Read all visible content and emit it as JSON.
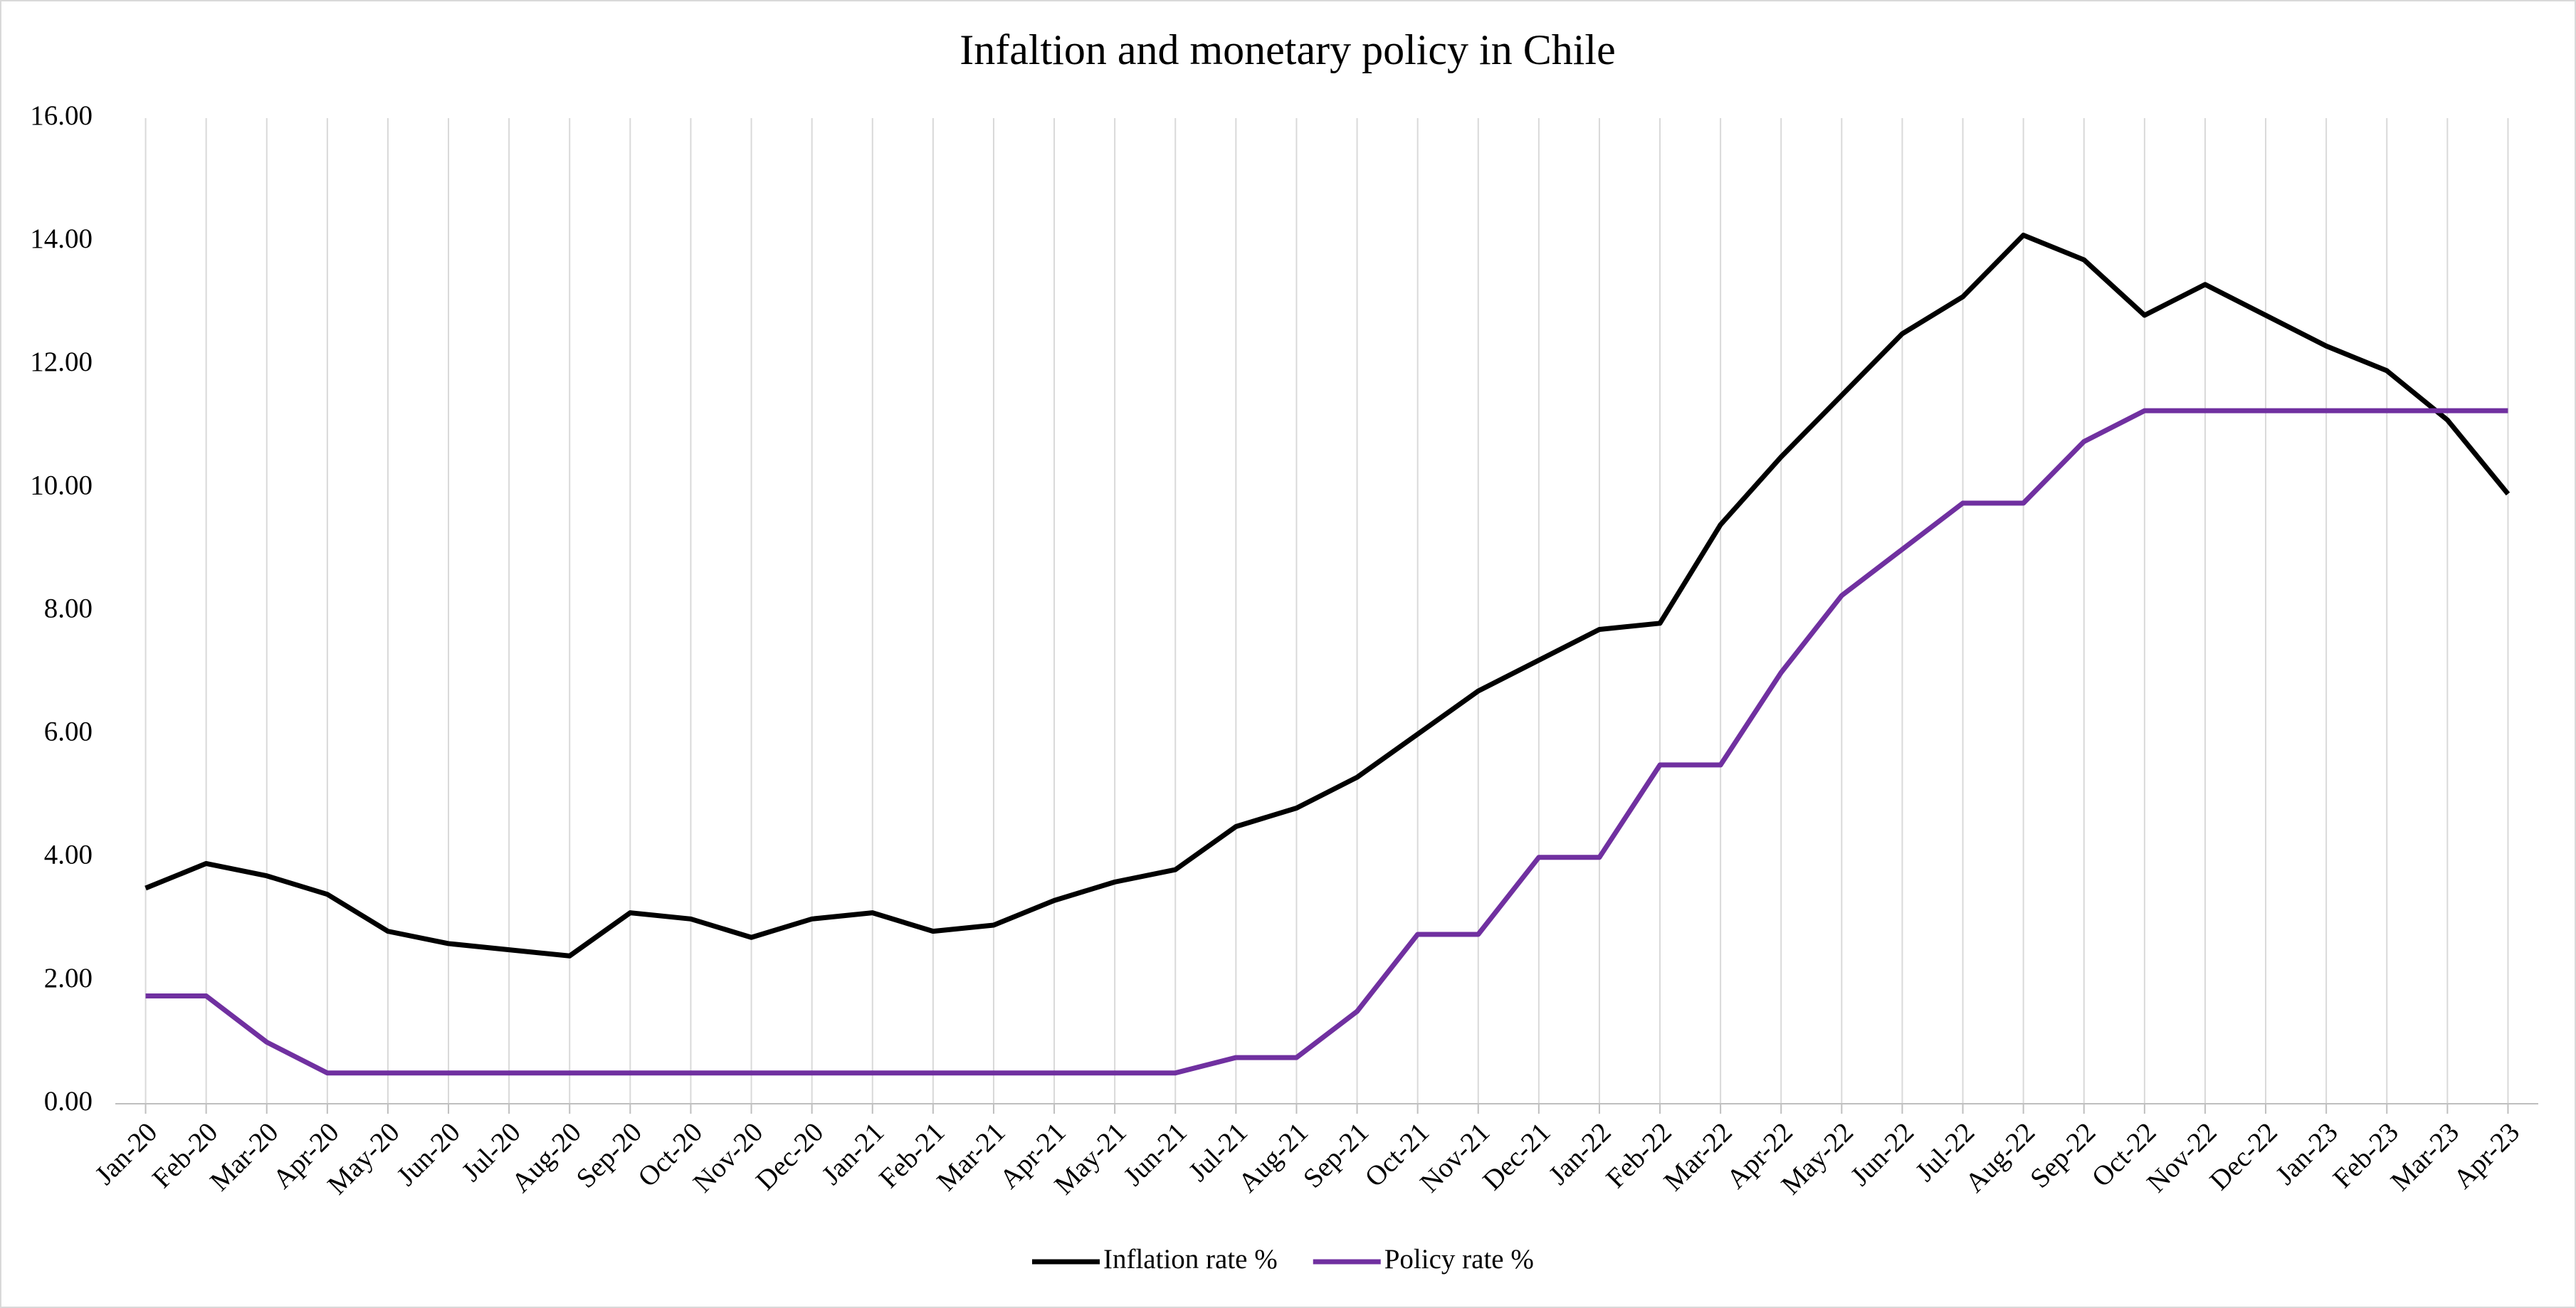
{
  "chart_data": {
    "type": "line",
    "title": "Infaltion and monetary policy in Chile",
    "categories": [
      "Jan-20",
      "Feb-20",
      "Mar-20",
      "Apr-20",
      "May-20",
      "Jun-20",
      "Jul-20",
      "Aug-20",
      "Sep-20",
      "Oct-20",
      "Nov-20",
      "Dec-20",
      "Jan-21",
      "Feb-21",
      "Mar-21",
      "Apr-21",
      "May-21",
      "Jun-21",
      "Jul-21",
      "Aug-21",
      "Sep-21",
      "Oct-21",
      "Nov-21",
      "Dec-21",
      "Jan-22",
      "Feb-22",
      "Mar-22",
      "Apr-22",
      "May-22",
      "Jun-22",
      "Jul-22",
      "Aug-22",
      "Sep-22",
      "Oct-22",
      "Nov-22",
      "Dec-22",
      "Jan-23",
      "Feb-23",
      "Mar-23",
      "Apr-23"
    ],
    "series": [
      {
        "name": "Inflation rate %",
        "color": "#000000",
        "values": [
          3.5,
          3.9,
          3.7,
          3.4,
          2.8,
          2.6,
          2.5,
          2.4,
          3.1,
          3.0,
          2.7,
          3.0,
          3.1,
          2.8,
          2.9,
          3.3,
          3.6,
          3.8,
          4.5,
          4.8,
          5.3,
          6.0,
          6.7,
          7.2,
          7.7,
          7.8,
          9.4,
          10.5,
          11.5,
          12.5,
          13.1,
          14.1,
          13.7,
          12.8,
          13.3,
          12.8,
          12.3,
          11.9,
          11.1,
          9.9
        ]
      },
      {
        "name": "Policy rate %",
        "color": "#7030a0",
        "values": [
          1.75,
          1.75,
          1.0,
          0.5,
          0.5,
          0.5,
          0.5,
          0.5,
          0.5,
          0.5,
          0.5,
          0.5,
          0.5,
          0.5,
          0.5,
          0.5,
          0.5,
          0.5,
          0.75,
          0.75,
          1.5,
          2.75,
          2.75,
          4.0,
          4.0,
          5.5,
          5.5,
          7.0,
          8.25,
          9.0,
          9.75,
          9.75,
          10.75,
          11.25,
          11.25,
          11.25,
          11.25,
          11.25,
          11.25,
          11.25
        ]
      }
    ],
    "ylim": [
      0,
      16
    ],
    "yticks": [
      {
        "value": 0,
        "label": "0.00"
      },
      {
        "value": 2,
        "label": "2.00"
      },
      {
        "value": 4,
        "label": "4.00"
      },
      {
        "value": 6,
        "label": "6.00"
      },
      {
        "value": 8,
        "label": "8.00"
      },
      {
        "value": 10,
        "label": "10.00"
      },
      {
        "value": 12,
        "label": "12.00"
      },
      {
        "value": 14,
        "label": "14.00"
      },
      {
        "value": 16,
        "label": "16.00"
      }
    ],
    "xgrid": true,
    "legend": "bottom"
  }
}
